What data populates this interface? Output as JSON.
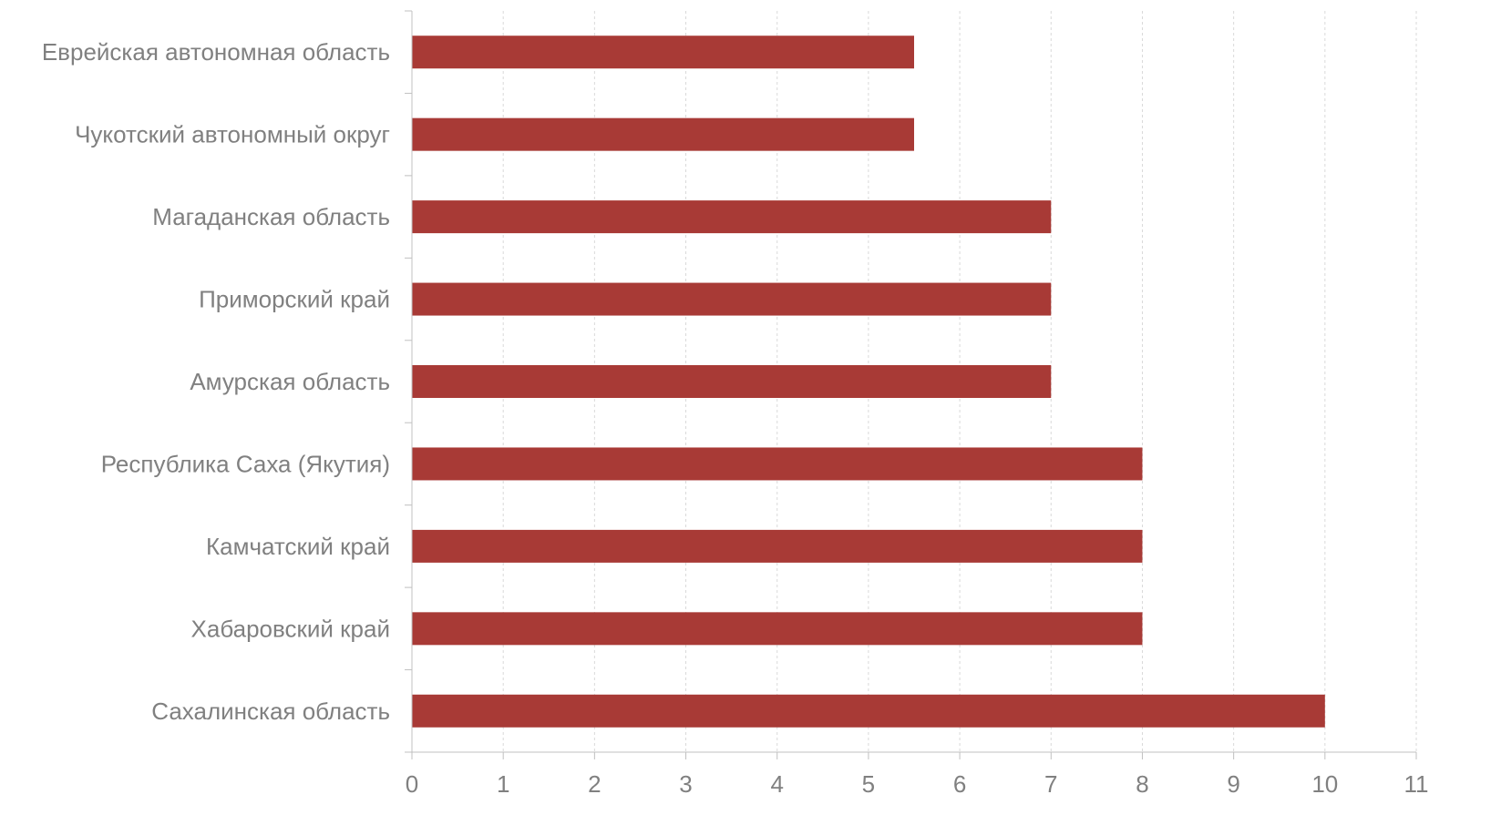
{
  "chart_data": {
    "type": "bar",
    "orientation": "horizontal",
    "categories": [
      "Еврейская автономная область",
      "Чукотский автономный округ",
      "Магаданская область",
      "Приморский край",
      "Амурская область",
      "Республика Саха (Якутия)",
      "Камчатский край",
      "Хабаровский край",
      "Сахалинская область"
    ],
    "values": [
      5.5,
      5.5,
      7,
      7,
      7,
      8,
      8,
      8,
      10
    ],
    "xlim": [
      0,
      11
    ],
    "xticks": [
      "0",
      "1",
      "2",
      "3",
      "4",
      "5",
      "6",
      "7",
      "8",
      "9",
      "10",
      "11"
    ],
    "title": "",
    "xlabel": "",
    "ylabel": "",
    "grid": "vertical dashed",
    "legend": "none",
    "bar_color": "#a83a36"
  }
}
